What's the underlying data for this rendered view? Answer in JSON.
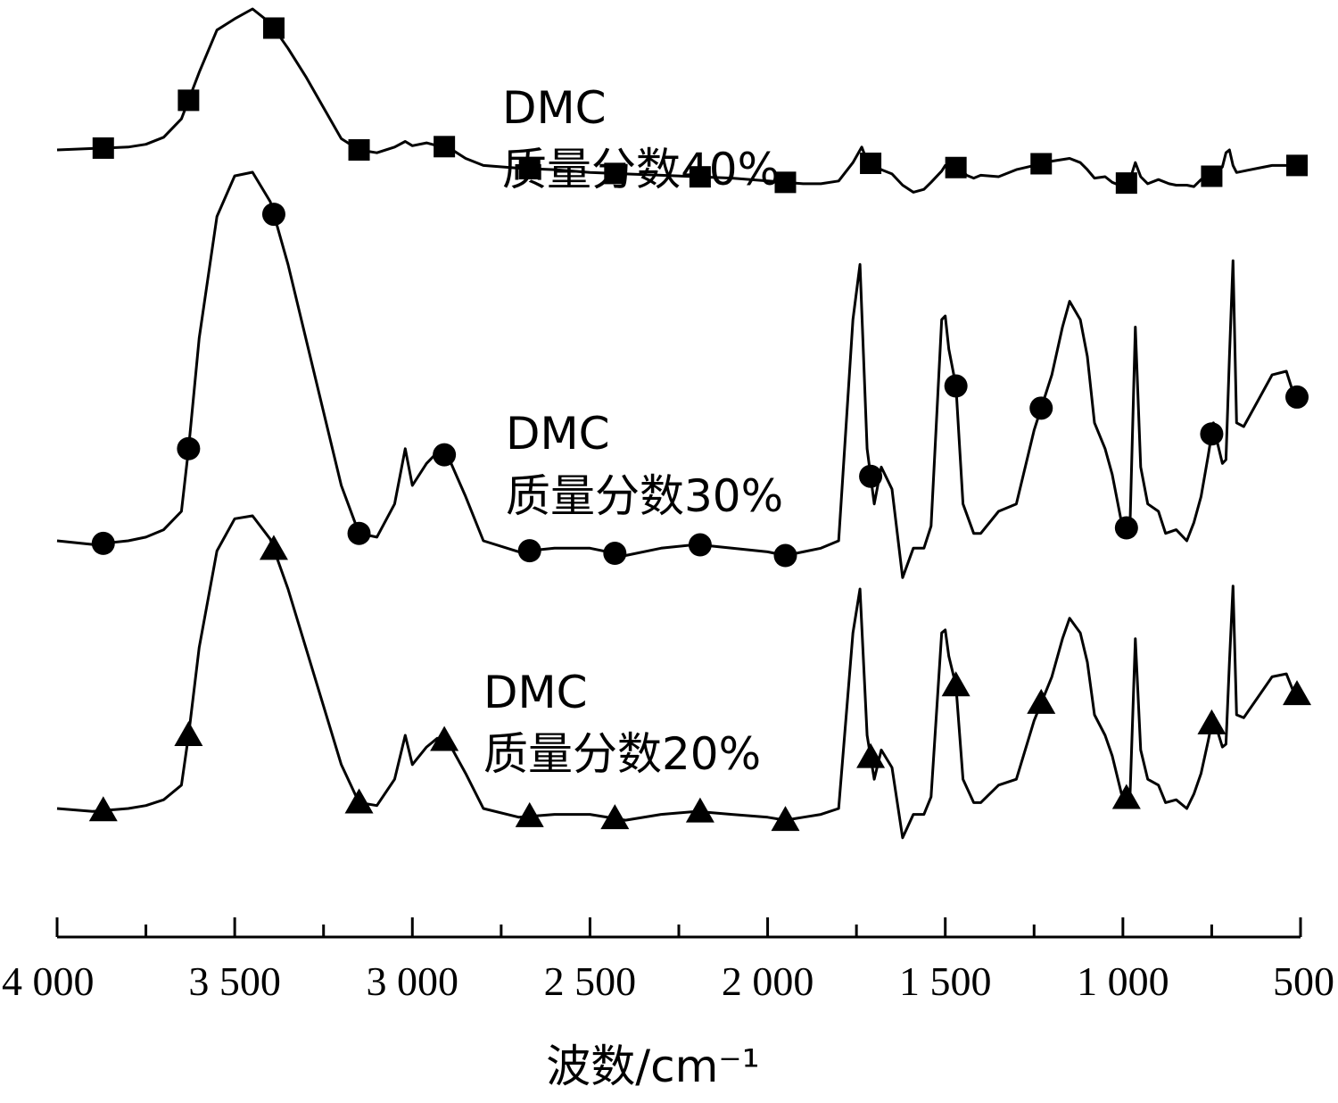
{
  "chart_data": {
    "type": "line",
    "xlabel": "波数/cm⁻¹",
    "ylabel": "",
    "title": "",
    "x_reversed": true,
    "xlim": [
      4000,
      500
    ],
    "x_ticks": [
      4000,
      3500,
      3000,
      2500,
      2000,
      1500,
      1000,
      500
    ],
    "x_tick_labels": [
      "4 000",
      "3 500",
      "3 000",
      "2 500",
      "2 000",
      "1 500",
      "1 000",
      "500"
    ],
    "x_minor_step": 250,
    "y_axis_visible": false,
    "markers_x": [
      3870,
      3630,
      3390,
      3150,
      2910,
      2670,
      2430,
      2190,
      1950,
      1710,
      1470,
      1230,
      990,
      750,
      510
    ],
    "series": [
      {
        "name": "DMC\n质量分数40%",
        "label_lines": [
          "DMC",
          "质量分数40%"
        ],
        "marker": "square",
        "x": [
          4000,
          3900,
          3800,
          3750,
          3700,
          3650,
          3600,
          3550,
          3500,
          3450,
          3400,
          3350,
          3300,
          3250,
          3200,
          3150,
          3100,
          3050,
          3020,
          3000,
          2960,
          2930,
          2900,
          2850,
          2800,
          2700,
          2600,
          2500,
          2400,
          2300,
          2200,
          2100,
          2000,
          1950,
          1900,
          1850,
          1800,
          1760,
          1735,
          1720,
          1700,
          1680,
          1650,
          1620,
          1590,
          1560,
          1540,
          1510,
          1500,
          1480,
          1460,
          1440,
          1420,
          1400,
          1350,
          1300,
          1250,
          1200,
          1150,
          1120,
          1100,
          1080,
          1050,
          1030,
          1000,
          980,
          965,
          950,
          930,
          900,
          870,
          850,
          820,
          800,
          780,
          760,
          745,
          740,
          720,
          710,
          700,
          690,
          680,
          660,
          620,
          580,
          540,
          520,
          500
        ],
        "y": [
          0.0,
          0.01,
          0.02,
          0.04,
          0.09,
          0.22,
          0.55,
          0.85,
          0.93,
          1.0,
          0.9,
          0.72,
          0.52,
          0.3,
          0.08,
          0.0,
          -0.02,
          0.02,
          0.06,
          0.03,
          0.05,
          0.03,
          0.02,
          -0.06,
          -0.11,
          -0.13,
          -0.14,
          -0.16,
          -0.17,
          -0.18,
          -0.19,
          -0.2,
          -0.22,
          -0.23,
          -0.24,
          -0.24,
          -0.22,
          -0.09,
          0.02,
          -0.08,
          -0.11,
          -0.14,
          -0.17,
          -0.25,
          -0.3,
          -0.28,
          -0.23,
          -0.15,
          -0.11,
          -0.13,
          -0.12,
          -0.18,
          -0.2,
          -0.18,
          -0.19,
          -0.14,
          -0.11,
          -0.08,
          -0.06,
          -0.09,
          -0.14,
          -0.2,
          -0.19,
          -0.23,
          -0.26,
          -0.21,
          -0.09,
          -0.19,
          -0.24,
          -0.21,
          -0.24,
          -0.25,
          -0.25,
          -0.26,
          -0.21,
          -0.18,
          -0.19,
          -0.17,
          -0.12,
          -0.02,
          0.0,
          -0.11,
          -0.16,
          -0.15,
          -0.13,
          -0.11,
          -0.11,
          -0.12,
          -0.1
        ]
      },
      {
        "name": "DMC\n质量分数30%",
        "label_lines": [
          "DMC",
          "质量分数30%"
        ],
        "marker": "circle",
        "x": [
          4000,
          3900,
          3800,
          3750,
          3700,
          3650,
          3630,
          3600,
          3550,
          3500,
          3450,
          3400,
          3350,
          3300,
          3250,
          3200,
          3150,
          3100,
          3050,
          3020,
          3000,
          2960,
          2930,
          2900,
          2850,
          2800,
          2700,
          2600,
          2500,
          2400,
          2300,
          2200,
          2100,
          2000,
          1950,
          1900,
          1850,
          1800,
          1760,
          1740,
          1720,
          1700,
          1680,
          1650,
          1620,
          1590,
          1560,
          1540,
          1510,
          1500,
          1490,
          1470,
          1450,
          1420,
          1400,
          1350,
          1300,
          1250,
          1200,
          1170,
          1150,
          1120,
          1100,
          1080,
          1050,
          1030,
          1000,
          980,
          965,
          950,
          930,
          900,
          880,
          850,
          820,
          800,
          780,
          760,
          745,
          740,
          720,
          710,
          700,
          690,
          680,
          660,
          620,
          580,
          540,
          520,
          500
        ],
        "y": [
          0.0,
          -0.01,
          0.0,
          0.01,
          0.03,
          0.08,
          0.25,
          0.55,
          0.88,
          0.99,
          1.0,
          0.92,
          0.75,
          0.55,
          0.35,
          0.15,
          0.02,
          0.01,
          0.1,
          0.25,
          0.15,
          0.21,
          0.24,
          0.23,
          0.12,
          0.0,
          -0.03,
          -0.02,
          -0.02,
          -0.04,
          -0.02,
          -0.01,
          -0.02,
          -0.03,
          -0.04,
          -0.03,
          -0.02,
          0.0,
          0.6,
          0.75,
          0.25,
          0.1,
          0.2,
          0.14,
          -0.1,
          -0.02,
          -0.02,
          0.04,
          0.6,
          0.61,
          0.52,
          0.42,
          0.1,
          0.02,
          0.02,
          0.08,
          0.1,
          0.3,
          0.45,
          0.58,
          0.65,
          0.6,
          0.5,
          0.32,
          0.25,
          0.18,
          0.03,
          0.04,
          0.58,
          0.2,
          0.1,
          0.08,
          0.02,
          0.03,
          0.0,
          0.05,
          0.12,
          0.23,
          0.32,
          0.29,
          0.21,
          0.22,
          0.5,
          0.76,
          0.32,
          0.31,
          0.38,
          0.45,
          0.46,
          0.4,
          0.38
        ]
      },
      {
        "name": "DMC\n质量分数20%",
        "label_lines": [
          "DMC",
          "质量分数20%"
        ],
        "marker": "triangle",
        "x": [
          4000,
          3900,
          3800,
          3750,
          3700,
          3650,
          3630,
          3600,
          3550,
          3500,
          3450,
          3400,
          3350,
          3300,
          3250,
          3200,
          3150,
          3100,
          3050,
          3020,
          3000,
          2960,
          2930,
          2900,
          2850,
          2800,
          2700,
          2600,
          2500,
          2400,
          2300,
          2200,
          2100,
          2000,
          1950,
          1900,
          1850,
          1800,
          1760,
          1740,
          1720,
          1700,
          1680,
          1650,
          1620,
          1590,
          1560,
          1540,
          1510,
          1500,
          1490,
          1470,
          1450,
          1420,
          1400,
          1350,
          1300,
          1250,
          1200,
          1170,
          1150,
          1120,
          1100,
          1080,
          1050,
          1030,
          1000,
          980,
          965,
          950,
          930,
          900,
          880,
          850,
          820,
          800,
          780,
          760,
          745,
          740,
          720,
          710,
          700,
          690,
          680,
          660,
          620,
          580,
          540,
          520,
          500
        ],
        "y": [
          0.0,
          -0.01,
          0.0,
          0.01,
          0.03,
          0.08,
          0.25,
          0.55,
          0.88,
          0.99,
          1.0,
          0.92,
          0.75,
          0.55,
          0.35,
          0.15,
          0.02,
          0.01,
          0.1,
          0.25,
          0.15,
          0.21,
          0.24,
          0.23,
          0.12,
          0.0,
          -0.03,
          -0.02,
          -0.02,
          -0.04,
          -0.02,
          -0.01,
          -0.02,
          -0.03,
          -0.04,
          -0.03,
          -0.02,
          0.0,
          0.6,
          0.75,
          0.25,
          0.1,
          0.2,
          0.14,
          -0.1,
          -0.02,
          -0.02,
          0.04,
          0.6,
          0.61,
          0.52,
          0.42,
          0.1,
          0.02,
          0.02,
          0.08,
          0.1,
          0.3,
          0.45,
          0.58,
          0.65,
          0.6,
          0.5,
          0.32,
          0.25,
          0.18,
          0.03,
          0.04,
          0.58,
          0.2,
          0.1,
          0.08,
          0.02,
          0.03,
          0.0,
          0.05,
          0.12,
          0.23,
          0.32,
          0.29,
          0.21,
          0.22,
          0.5,
          0.76,
          0.32,
          0.31,
          0.38,
          0.45,
          0.46,
          0.4,
          0.38
        ]
      }
    ]
  }
}
